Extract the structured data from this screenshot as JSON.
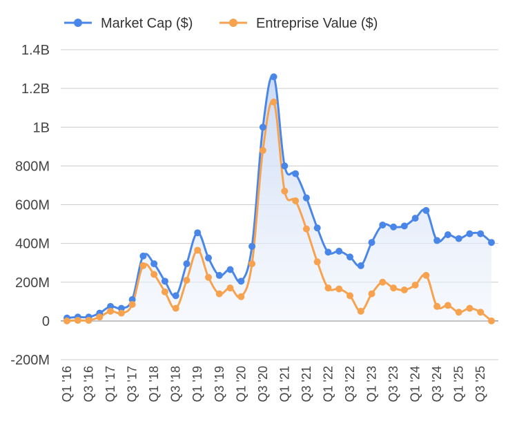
{
  "chart_data": {
    "type": "line",
    "title": "",
    "xlabel": "",
    "ylabel": "",
    "ylim": [
      -200000000,
      1400000000
    ],
    "y_ticks": [
      -200000000,
      0,
      200000000,
      400000000,
      600000000,
      800000000,
      1000000000,
      1200000000,
      1400000000
    ],
    "y_tick_labels": [
      "-200M",
      "0",
      "200M",
      "400M",
      "600M",
      "800M",
      "1B",
      "1.2B",
      "1.4B"
    ],
    "grid": true,
    "legend_position": "top-left",
    "x_tick_labels": [
      "Q1 '16",
      "Q3 '16",
      "Q1 '17",
      "Q3 '17",
      "Q1 '18",
      "Q3 '18",
      "Q1 '19",
      "Q3 '19",
      "Q1 '20",
      "Q3 '20",
      "Q1 '21",
      "Q3 '21",
      "Q1 '22",
      "Q3 '22",
      "Q1 '23",
      "Q3 '23",
      "Q1 '24",
      "Q3 '24",
      "Q1 '25",
      "Q3 '25"
    ],
    "x": [
      "Q1 '16",
      "Q2 '16",
      "Q3 '16",
      "Q4 '16",
      "Q1 '17",
      "Q2 '17",
      "Q3 '17",
      "Q4 '17",
      "Q1 '18",
      "Q2 '18",
      "Q3 '18",
      "Q4 '18",
      "Q1 '19",
      "Q2 '19",
      "Q3 '19",
      "Q4 '19",
      "Q1 '20",
      "Q2 '20",
      "Q3 '20",
      "Q4 '20",
      "Q1 '21",
      "Q2 '21",
      "Q3 '21",
      "Q4 '21",
      "Q1 '22",
      "Q2 '22",
      "Q3 '22",
      "Q4 '22",
      "Q1 '23",
      "Q2 '23",
      "Q3 '23",
      "Q4 '23",
      "Q1 '24",
      "Q2 '24",
      "Q3 '24",
      "Q4 '24",
      "Q1 '25",
      "Q2 '25",
      "Q3 '25",
      "Q4 '25"
    ],
    "series": [
      {
        "name": "Market Cap ($)",
        "color": "#4a86e8",
        "fill": true,
        "values": [
          15000000,
          20000000,
          20000000,
          40000000,
          75000000,
          65000000,
          110000000,
          335000000,
          295000000,
          205000000,
          130000000,
          295000000,
          455000000,
          325000000,
          235000000,
          265000000,
          205000000,
          385000000,
          1000000000,
          1260000000,
          800000000,
          760000000,
          635000000,
          480000000,
          355000000,
          360000000,
          330000000,
          285000000,
          405000000,
          495000000,
          485000000,
          490000000,
          530000000,
          570000000,
          415000000,
          445000000,
          425000000,
          450000000,
          450000000,
          405000000
        ]
      },
      {
        "name": "Entreprise Value ($)",
        "color": "#f6a24e",
        "fill": false,
        "values": [
          0,
          3000000,
          3000000,
          20000000,
          50000000,
          40000000,
          85000000,
          285000000,
          240000000,
          150000000,
          65000000,
          210000000,
          365000000,
          225000000,
          140000000,
          170000000,
          125000000,
          295000000,
          880000000,
          1130000000,
          670000000,
          620000000,
          475000000,
          305000000,
          170000000,
          165000000,
          130000000,
          50000000,
          140000000,
          200000000,
          170000000,
          160000000,
          185000000,
          235000000,
          75000000,
          80000000,
          45000000,
          65000000,
          45000000,
          0
        ]
      }
    ]
  }
}
